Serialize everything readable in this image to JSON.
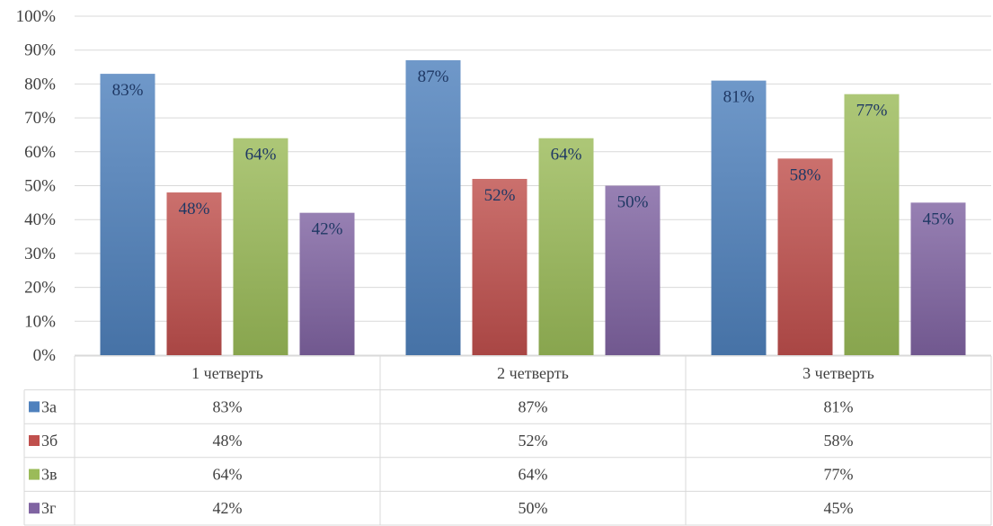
{
  "chart_data": {
    "type": "bar",
    "categories": [
      "1 четверть",
      "2 четверть",
      "3 четверть"
    ],
    "series": [
      {
        "name": "3а",
        "values": [
          83,
          87,
          81
        ],
        "color": "#4f81bd"
      },
      {
        "name": "3б",
        "values": [
          48,
          52,
          58
        ],
        "color": "#c0504d"
      },
      {
        "name": "3в",
        "values": [
          64,
          64,
          77
        ],
        "color": "#9bbb59"
      },
      {
        "name": "3г",
        "values": [
          42,
          50,
          45
        ],
        "color": "#8064a2"
      }
    ],
    "value_format": "percent",
    "ylim": [
      0,
      100
    ],
    "yticks": [
      "0%",
      "10%",
      "20%",
      "30%",
      "40%",
      "50%",
      "60%",
      "70%",
      "80%",
      "90%",
      "100%"
    ],
    "grid": true,
    "legend": "data-table",
    "data_labels": [
      [
        "83%",
        "87%",
        "81%"
      ],
      [
        "48%",
        "52%",
        "58%"
      ],
      [
        "64%",
        "64%",
        "77%"
      ],
      [
        "42%",
        "50%",
        "45%"
      ]
    ]
  }
}
